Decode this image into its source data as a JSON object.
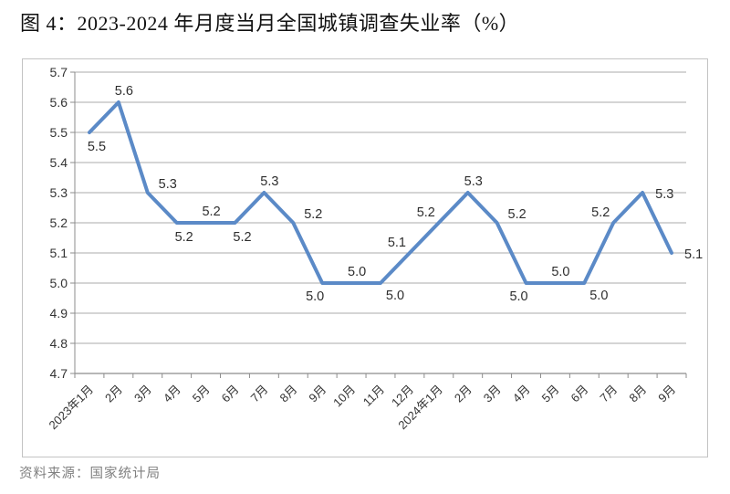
{
  "title": "图 4：2023-2024 年月度当月全国城镇调查失业率（%）",
  "source_note": "资料来源：国家统计局",
  "colors": {
    "line": "#5B8AC7",
    "grid": "#ABABAB",
    "axis": "#8C8C8C",
    "frame_border": "#C3C3C3",
    "tick_text": "#333333",
    "data_label_text": "#2E2E2E",
    "title_text": "#111111",
    "source_text": "#808080",
    "background": "#FFFFFF"
  },
  "chart_data": {
    "type": "line",
    "title": "2023-2024 年月度当月全国城镇调查失业率（%）",
    "categories": [
      "2023年1月",
      "2月",
      "3月",
      "4月",
      "5月",
      "6月",
      "7月",
      "8月",
      "9月",
      "10月",
      "11月",
      "12月",
      "2024年1月",
      "2月",
      "3月",
      "4月",
      "5月",
      "6月",
      "7月",
      "8月",
      "9月"
    ],
    "values": [
      5.5,
      5.6,
      5.3,
      5.2,
      5.2,
      5.2,
      5.3,
      5.2,
      5.0,
      5.0,
      5.0,
      5.1,
      5.2,
      5.3,
      5.2,
      5.0,
      5.0,
      5.0,
      5.2,
      5.3,
      5.1
    ],
    "point_labels": [
      "5.5",
      "5.6",
      "5.3",
      "5.2",
      "5.2",
      "5.2",
      "5.3",
      "5.2",
      "5.0",
      "5.0",
      "5.0",
      "5.1",
      "5.2",
      "5.3",
      "5.2",
      "5.0",
      "5.0",
      "5.0",
      "5.2",
      "5.3",
      "5.1"
    ],
    "label_positions": [
      "below",
      "above",
      "above-right",
      "below",
      "above",
      "below",
      "above",
      "above-right",
      "below-left",
      "above",
      "below-right",
      "above-left",
      "above-left",
      "above",
      "above-right",
      "below-left",
      "above",
      "below-right",
      "above-left",
      "right",
      "right"
    ],
    "yticks": [
      "5.7",
      "5.6",
      "5.5",
      "5.4",
      "5.3",
      "5.2",
      "5.1",
      "5.0",
      "4.9",
      "4.8",
      "4.7"
    ],
    "ylim": [
      4.7,
      5.7
    ],
    "xlabel": "",
    "ylabel": "",
    "grid": "horizontal",
    "legend": "none",
    "x_labels_rotation_deg": -45
  }
}
